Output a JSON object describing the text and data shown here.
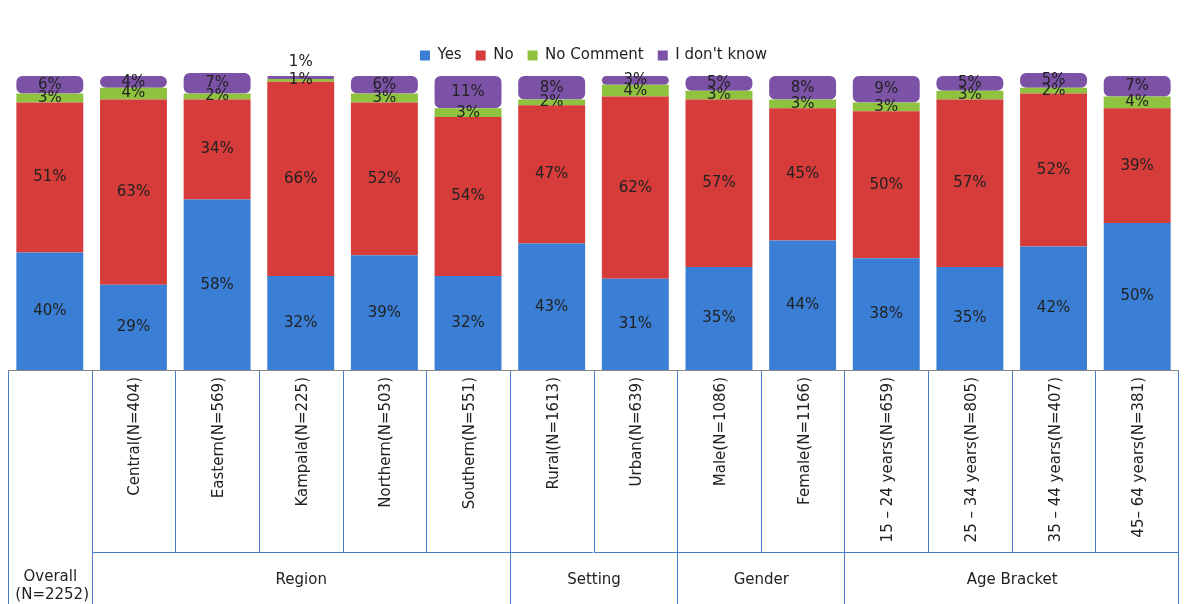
{
  "chart_data": {
    "type": "bar",
    "stacked": true,
    "data_labels": true,
    "legend": "top",
    "categories": [
      null,
      "Central(N=404)",
      "Eastern(N=569)",
      "Kampala(N=225)",
      "Northern(N=503)",
      "Southern(N=551)",
      "Rural(N=1613)",
      "Urban(N=639)",
      "Male(N=1086)",
      "Female(N=1166)",
      "15 – 24 years(N=659)",
      "25 – 34 years(N=805)",
      "35 – 44 years(N=407)",
      "45– 64 years(N=381)"
    ],
    "annotations": [
      "Overall (N=2252)",
      "Region",
      "Setting",
      "Gender",
      "Age Bracket"
    ],
    "series": [
      {
        "name": "Yes",
        "color": "#3a7fd5",
        "values": [
          40,
          29,
          58,
          32,
          39,
          32,
          43,
          31,
          35,
          44,
          38,
          35,
          42,
          50
        ],
        "value_labels": [
          "40%",
          "29%",
          "58%",
          "32%",
          "39%",
          "32%",
          "43%",
          "31%",
          "35%",
          "44%",
          "38%",
          "35%",
          "42%",
          "50%"
        ]
      },
      {
        "name": "No",
        "color": "#d63c3a",
        "values": [
          51,
          63,
          34,
          66,
          52,
          54,
          47,
          62,
          57,
          45,
          50,
          57,
          52,
          39
        ],
        "value_labels": [
          "51%",
          "63%",
          "34%",
          "66%",
          "52%",
          "54%",
          "47%",
          "62%",
          "57%",
          "45%",
          "50%",
          "57%",
          "52%",
          "39%"
        ]
      },
      {
        "name": "No Comment",
        "color": "#8fc23f",
        "values": [
          3,
          4,
          2,
          1,
          3,
          3,
          2,
          4,
          3,
          3,
          3,
          3,
          2,
          4
        ],
        "value_labels": [
          "3%",
          "4%",
          "2%",
          "1%",
          "3%",
          "3%",
          "2%",
          "4%",
          "3%",
          "3%",
          "3%",
          "3%",
          "2%",
          "4%"
        ]
      },
      {
        "name": "I don't know",
        "color": "#7b52a6",
        "values": [
          6,
          4,
          7,
          1,
          6,
          11,
          8,
          3,
          5,
          8,
          9,
          5,
          5,
          7
        ],
        "value_labels": [
          "6%",
          "4%",
          "7%",
          "1%",
          "6%",
          "11%",
          "8%",
          "3%",
          "5%",
          "8%",
          "9%",
          "5%",
          "5%",
          "7%"
        ]
      }
    ]
  }
}
